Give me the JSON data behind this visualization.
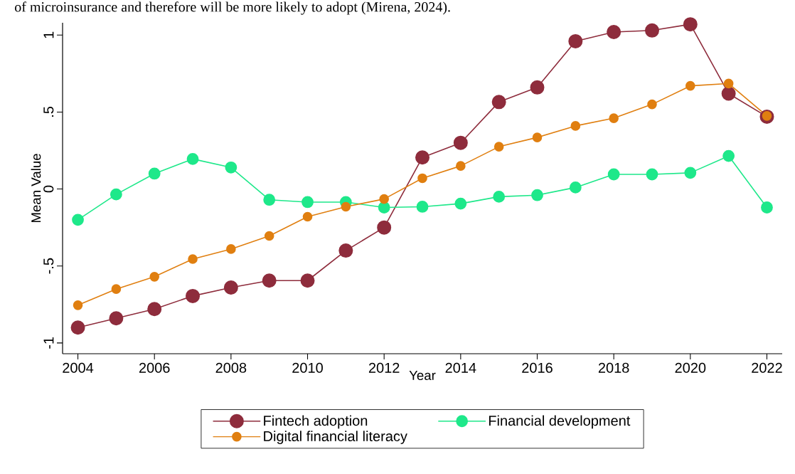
{
  "chart_data": {
    "type": "line",
    "xlabel": "Year",
    "ylabel": "Mean Value",
    "annotations": [
      "of microinsurance and therefore will be more likely to adopt (Mirena, 2024)."
    ],
    "x": [
      2004,
      2005,
      2006,
      2007,
      2008,
      2009,
      2010,
      2011,
      2012,
      2013,
      2014,
      2015,
      2016,
      2017,
      2018,
      2019,
      2020,
      2021,
      2022
    ],
    "series": [
      {
        "name": "Fintech adoption",
        "color": "#8e2c3c",
        "values": [
          -0.9,
          -0.84,
          -0.78,
          -0.695,
          -0.64,
          -0.595,
          -0.595,
          -0.4,
          -0.25,
          0.205,
          0.3,
          0.565,
          0.66,
          0.96,
          1.02,
          1.03,
          1.07,
          0.62,
          0.47
        ]
      },
      {
        "name": "Financial development",
        "color": "#1ee88a",
        "values": [
          -0.2,
          -0.035,
          0.1,
          0.195,
          0.14,
          -0.07,
          -0.085,
          -0.085,
          -0.12,
          -0.115,
          -0.095,
          -0.05,
          -0.04,
          0.01,
          0.095,
          0.095,
          0.105,
          0.215,
          -0.12
        ]
      },
      {
        "name": "Digital financial literacy",
        "color": "#e07f10",
        "values": [
          -0.755,
          -0.65,
          -0.57,
          -0.455,
          -0.39,
          -0.305,
          -0.18,
          -0.115,
          -0.065,
          0.07,
          0.15,
          0.275,
          0.335,
          0.41,
          0.46,
          0.55,
          0.67,
          0.685,
          0.475
        ]
      }
    ],
    "xlim": [
      2003.6,
      2022.4
    ],
    "ylim": [
      -1.07,
      1.08
    ],
    "xticks": [
      2004,
      2006,
      2008,
      2010,
      2012,
      2014,
      2016,
      2018,
      2020,
      2022
    ],
    "yticks": [
      {
        "value": -1,
        "label": "-1"
      },
      {
        "value": -0.5,
        "label": "-.5"
      },
      {
        "value": 0,
        "label": "0"
      },
      {
        "value": 0.5,
        "label": ".5"
      },
      {
        "value": 1,
        "label": "1"
      }
    ],
    "grid": false,
    "legend": "bottom",
    "marker": "circle",
    "line_style": "solid"
  }
}
